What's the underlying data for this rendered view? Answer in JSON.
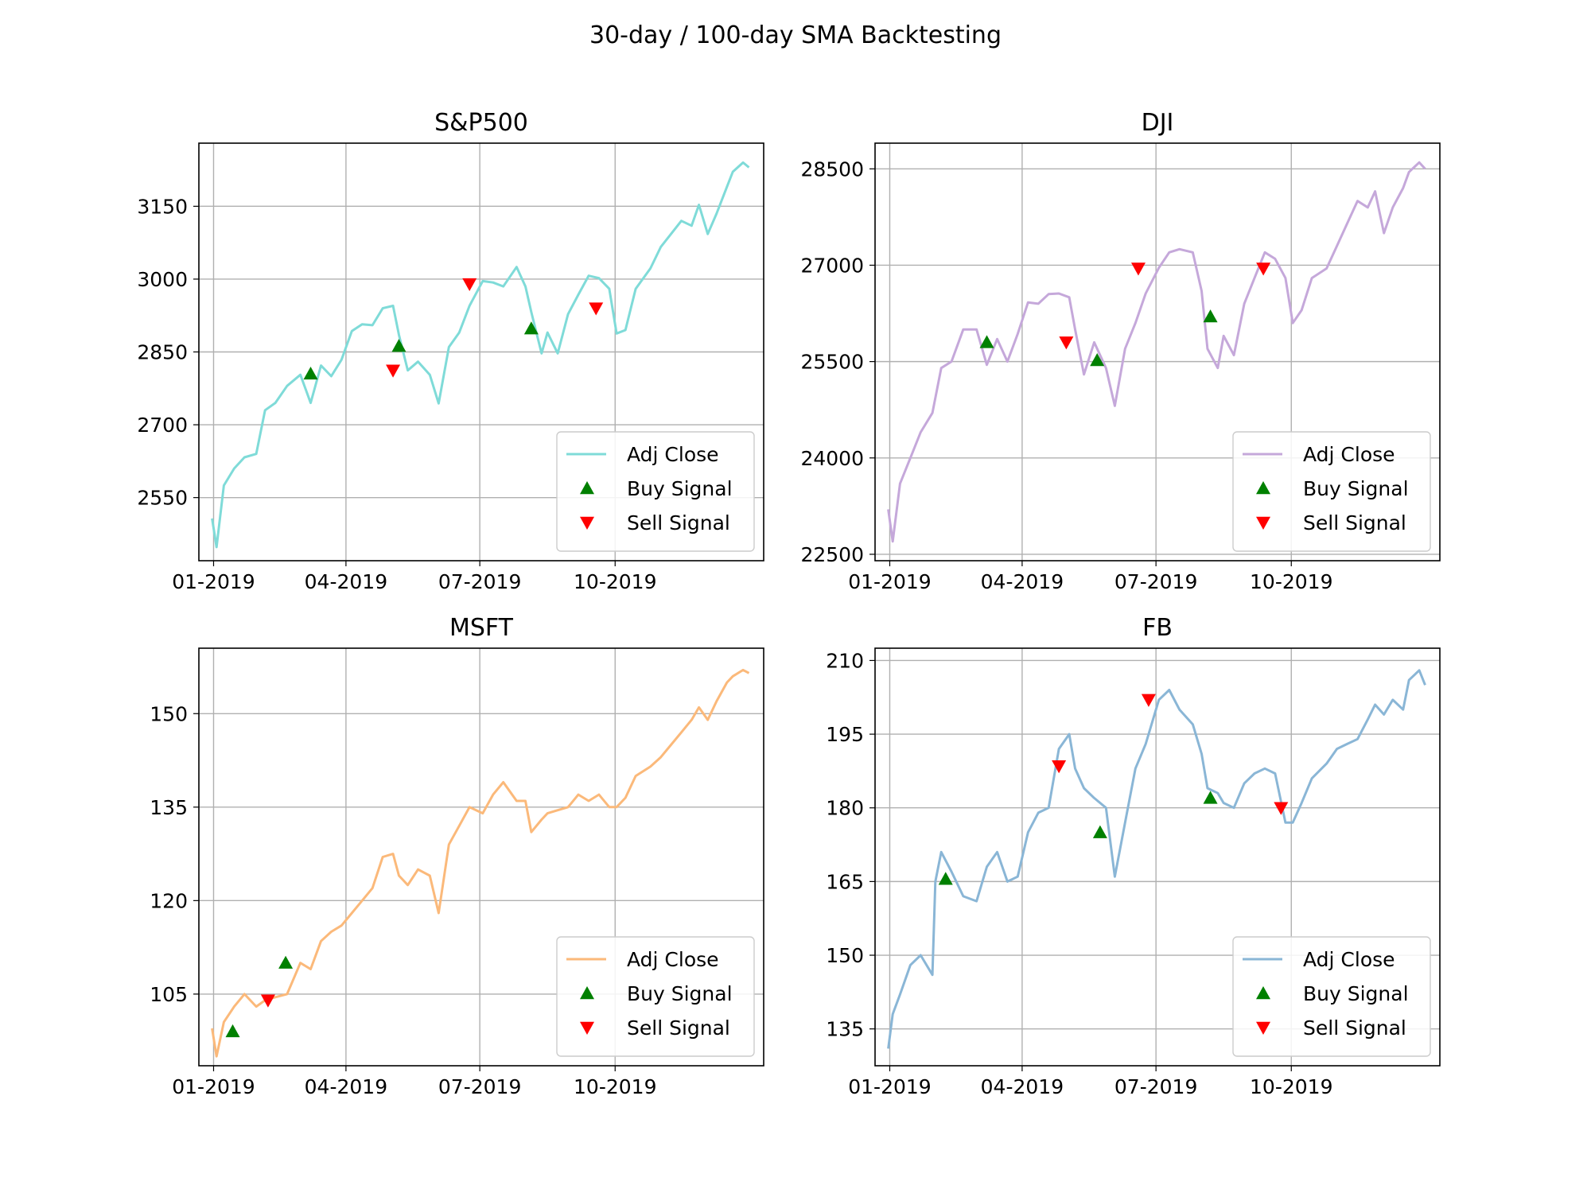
{
  "figure": {
    "title": "30-day / 100-day SMA Backtesting"
  },
  "legend": {
    "adj_close": "Adj Close",
    "buy": "Buy Signal",
    "sell": "Sell Signal",
    "placement": "lower-right"
  },
  "colors": {
    "buy": "#008000",
    "sell": "#ff0000",
    "grid": "#b0b0b0"
  },
  "chart_data": [
    {
      "type": "line",
      "title": "S&P500",
      "color": "#7fdbd8",
      "xlabel": "",
      "ylabel": "",
      "grid": true,
      "x_ticks": [
        "01-2019",
        "04-2019",
        "07-2019",
        "10-2019"
      ],
      "y_ticks": [
        2550,
        2700,
        2850,
        3000,
        3150
      ],
      "xlim": [
        "2018-12-22",
        "2020-01-10"
      ],
      "ylim": [
        2420,
        3280
      ],
      "series": [
        {
          "name": "Adj Close",
          "x": [
            "2018-12-31",
            "2019-01-03",
            "2019-01-08",
            "2019-01-15",
            "2019-01-22",
            "2019-01-30",
            "2019-02-05",
            "2019-02-12",
            "2019-02-20",
            "2019-03-01",
            "2019-03-08",
            "2019-03-15",
            "2019-03-22",
            "2019-03-29",
            "2019-04-05",
            "2019-04-12",
            "2019-04-19",
            "2019-04-26",
            "2019-05-03",
            "2019-05-07",
            "2019-05-13",
            "2019-05-20",
            "2019-05-28",
            "2019-06-03",
            "2019-06-10",
            "2019-06-17",
            "2019-06-24",
            "2019-07-03",
            "2019-07-10",
            "2019-07-17",
            "2019-07-26",
            "2019-08-01",
            "2019-08-05",
            "2019-08-12",
            "2019-08-16",
            "2019-08-23",
            "2019-08-30",
            "2019-09-06",
            "2019-09-13",
            "2019-09-20",
            "2019-09-27",
            "2019-10-02",
            "2019-10-08",
            "2019-10-15",
            "2019-10-25",
            "2019-11-01",
            "2019-11-08",
            "2019-11-15",
            "2019-11-22",
            "2019-11-27",
            "2019-12-03",
            "2019-12-09",
            "2019-12-16",
            "2019-12-20",
            "2019-12-27",
            "2019-12-31"
          ],
          "y": [
            2507,
            2448,
            2575,
            2610,
            2633,
            2640,
            2730,
            2745,
            2780,
            2803,
            2745,
            2822,
            2800,
            2834,
            2893,
            2907,
            2905,
            2940,
            2945,
            2885,
            2812,
            2830,
            2803,
            2744,
            2860,
            2890,
            2945,
            2996,
            2993,
            2985,
            3025,
            2985,
            2932,
            2847,
            2890,
            2847,
            2928,
            2968,
            3007,
            3002,
            2980,
            2888,
            2895,
            2980,
            3022,
            3066,
            3093,
            3120,
            3110,
            3153,
            3093,
            3135,
            3190,
            3221,
            3240,
            3230
          ]
        },
        {
          "name": "Buy Signal",
          "x": [
            "2019-03-08",
            "2019-05-07",
            "2019-08-05"
          ],
          "y": [
            2805,
            2862,
            2898
          ]
        },
        {
          "name": "Sell Signal",
          "x": [
            "2019-05-03",
            "2019-06-24",
            "2019-09-18"
          ],
          "y": [
            2812,
            2990,
            2940
          ]
        }
      ]
    },
    {
      "type": "line",
      "title": "DJI",
      "color": "#c5a8da",
      "xlabel": "",
      "ylabel": "",
      "grid": true,
      "x_ticks": [
        "01-2019",
        "04-2019",
        "07-2019",
        "10-2019"
      ],
      "y_ticks": [
        22500,
        24000,
        25500,
        27000,
        28500
      ],
      "xlim": [
        "2018-12-22",
        "2020-01-10"
      ],
      "ylim": [
        22400,
        28900
      ],
      "series": [
        {
          "name": "Adj Close",
          "x": [
            "2018-12-31",
            "2019-01-03",
            "2019-01-08",
            "2019-01-15",
            "2019-01-22",
            "2019-01-30",
            "2019-02-05",
            "2019-02-12",
            "2019-02-20",
            "2019-03-01",
            "2019-03-08",
            "2019-03-15",
            "2019-03-22",
            "2019-03-29",
            "2019-04-05",
            "2019-04-12",
            "2019-04-19",
            "2019-04-26",
            "2019-05-03",
            "2019-05-07",
            "2019-05-13",
            "2019-05-20",
            "2019-05-28",
            "2019-06-03",
            "2019-06-10",
            "2019-06-17",
            "2019-06-24",
            "2019-07-03",
            "2019-07-10",
            "2019-07-17",
            "2019-07-26",
            "2019-08-01",
            "2019-08-05",
            "2019-08-12",
            "2019-08-16",
            "2019-08-23",
            "2019-08-30",
            "2019-09-06",
            "2019-09-13",
            "2019-09-20",
            "2019-09-27",
            "2019-10-02",
            "2019-10-08",
            "2019-10-15",
            "2019-10-25",
            "2019-11-01",
            "2019-11-08",
            "2019-11-15",
            "2019-11-22",
            "2019-11-27",
            "2019-12-03",
            "2019-12-09",
            "2019-12-16",
            "2019-12-20",
            "2019-12-27",
            "2019-12-31"
          ],
          "y": [
            23200,
            22700,
            23600,
            24000,
            24400,
            24700,
            25400,
            25500,
            26000,
            26000,
            25450,
            25850,
            25500,
            25930,
            26420,
            26400,
            26550,
            26560,
            26500,
            26000,
            25300,
            25800,
            25400,
            24810,
            25700,
            26100,
            26560,
            26960,
            27200,
            27250,
            27200,
            26600,
            25700,
            25400,
            25900,
            25600,
            26400,
            26800,
            27200,
            27100,
            26800,
            26100,
            26300,
            26800,
            26950,
            27300,
            27650,
            28000,
            27900,
            28150,
            27500,
            27900,
            28200,
            28450,
            28600,
            28500
          ]
        },
        {
          "name": "Buy Signal",
          "x": [
            "2019-03-08",
            "2019-05-22",
            "2019-08-07"
          ],
          "y": [
            25800,
            25520,
            26200
          ]
        },
        {
          "name": "Sell Signal",
          "x": [
            "2019-05-01",
            "2019-06-19",
            "2019-09-12"
          ],
          "y": [
            25800,
            26950,
            26950
          ]
        }
      ]
    },
    {
      "type": "line",
      "title": "MSFT",
      "color": "#fbb97a",
      "xlabel": "",
      "ylabel": "",
      "grid": true,
      "x_ticks": [
        "01-2019",
        "04-2019",
        "07-2019",
        "10-2019"
      ],
      "y_ticks": [
        105,
        120,
        135,
        150
      ],
      "xlim": [
        "2018-12-22",
        "2020-01-10"
      ],
      "ylim": [
        93.5,
        160.5
      ],
      "series": [
        {
          "name": "Adj Close",
          "x": [
            "2018-12-31",
            "2019-01-03",
            "2019-01-08",
            "2019-01-15",
            "2019-01-22",
            "2019-01-30",
            "2019-02-05",
            "2019-02-12",
            "2019-02-20",
            "2019-03-01",
            "2019-03-08",
            "2019-03-15",
            "2019-03-22",
            "2019-03-29",
            "2019-04-05",
            "2019-04-12",
            "2019-04-19",
            "2019-04-26",
            "2019-05-03",
            "2019-05-07",
            "2019-05-13",
            "2019-05-20",
            "2019-05-28",
            "2019-06-03",
            "2019-06-10",
            "2019-06-17",
            "2019-06-24",
            "2019-07-03",
            "2019-07-10",
            "2019-07-17",
            "2019-07-26",
            "2019-08-01",
            "2019-08-05",
            "2019-08-12",
            "2019-08-16",
            "2019-08-23",
            "2019-08-30",
            "2019-09-06",
            "2019-09-13",
            "2019-09-20",
            "2019-09-27",
            "2019-10-02",
            "2019-10-08",
            "2019-10-15",
            "2019-10-25",
            "2019-11-01",
            "2019-11-08",
            "2019-11-15",
            "2019-11-22",
            "2019-11-27",
            "2019-12-03",
            "2019-12-09",
            "2019-12-16",
            "2019-12-20",
            "2019-12-27",
            "2019-12-31"
          ],
          "y": [
            99.5,
            95,
            100.5,
            103,
            105,
            103,
            104,
            104.5,
            105,
            110,
            109,
            113.5,
            115,
            116,
            118,
            120,
            122,
            127,
            127.5,
            124,
            122.5,
            125,
            124,
            118,
            129,
            132,
            135,
            134,
            137,
            139,
            136,
            136,
            131,
            133,
            134,
            134.5,
            135,
            137,
            136,
            137,
            135,
            135,
            136.5,
            140,
            141.5,
            143,
            145,
            147,
            149,
            151,
            149,
            152,
            155,
            156,
            157,
            156.5
          ]
        },
        {
          "name": "Buy Signal",
          "x": [
            "2019-01-14",
            "2019-02-19"
          ],
          "y": [
            99,
            110
          ]
        },
        {
          "name": "Sell Signal",
          "x": [
            "2019-02-07"
          ],
          "y": [
            104
          ]
        }
      ]
    },
    {
      "type": "line",
      "title": "FB",
      "color": "#8ab6d6",
      "xlabel": "",
      "ylabel": "",
      "grid": true,
      "x_ticks": [
        "01-2019",
        "04-2019",
        "07-2019",
        "10-2019"
      ],
      "y_ticks": [
        135,
        150,
        165,
        180,
        195,
        210
      ],
      "xlim": [
        "2018-12-22",
        "2020-01-10"
      ],
      "ylim": [
        127.5,
        212.5
      ],
      "series": [
        {
          "name": "Adj Close",
          "x": [
            "2018-12-31",
            "2019-01-03",
            "2019-01-08",
            "2019-01-15",
            "2019-01-22",
            "2019-01-30",
            "2019-02-01",
            "2019-02-05",
            "2019-02-12",
            "2019-02-20",
            "2019-03-01",
            "2019-03-08",
            "2019-03-15",
            "2019-03-22",
            "2019-03-29",
            "2019-04-05",
            "2019-04-12",
            "2019-04-19",
            "2019-04-26",
            "2019-05-03",
            "2019-05-07",
            "2019-05-13",
            "2019-05-20",
            "2019-05-28",
            "2019-06-03",
            "2019-06-10",
            "2019-06-17",
            "2019-06-24",
            "2019-07-03",
            "2019-07-10",
            "2019-07-17",
            "2019-07-26",
            "2019-08-01",
            "2019-08-05",
            "2019-08-12",
            "2019-08-16",
            "2019-08-23",
            "2019-08-30",
            "2019-09-06",
            "2019-09-13",
            "2019-09-20",
            "2019-09-27",
            "2019-10-02",
            "2019-10-08",
            "2019-10-15",
            "2019-10-25",
            "2019-11-01",
            "2019-11-08",
            "2019-11-15",
            "2019-11-22",
            "2019-11-27",
            "2019-12-03",
            "2019-12-09",
            "2019-12-16",
            "2019-12-20",
            "2019-12-27",
            "2019-12-31"
          ],
          "y": [
            131,
            138,
            142,
            148,
            150,
            146,
            165,
            171,
            167,
            162,
            161,
            168,
            171,
            165,
            166,
            175,
            179,
            180,
            192,
            195,
            188,
            184,
            182,
            180,
            166,
            177,
            188,
            193,
            202,
            204,
            200,
            197,
            191,
            184,
            183,
            181,
            180,
            185,
            187,
            188,
            187,
            177,
            177,
            181,
            186,
            189,
            192,
            193,
            194,
            198,
            201,
            199,
            202,
            200,
            206,
            208,
            205
          ]
        },
        {
          "name": "Buy Signal",
          "x": [
            "2019-02-08",
            "2019-05-24",
            "2019-08-07"
          ],
          "y": [
            165.5,
            175,
            182
          ]
        },
        {
          "name": "Sell Signal",
          "x": [
            "2019-04-26",
            "2019-06-26",
            "2019-09-24"
          ],
          "y": [
            188.5,
            202,
            180
          ]
        }
      ]
    }
  ]
}
